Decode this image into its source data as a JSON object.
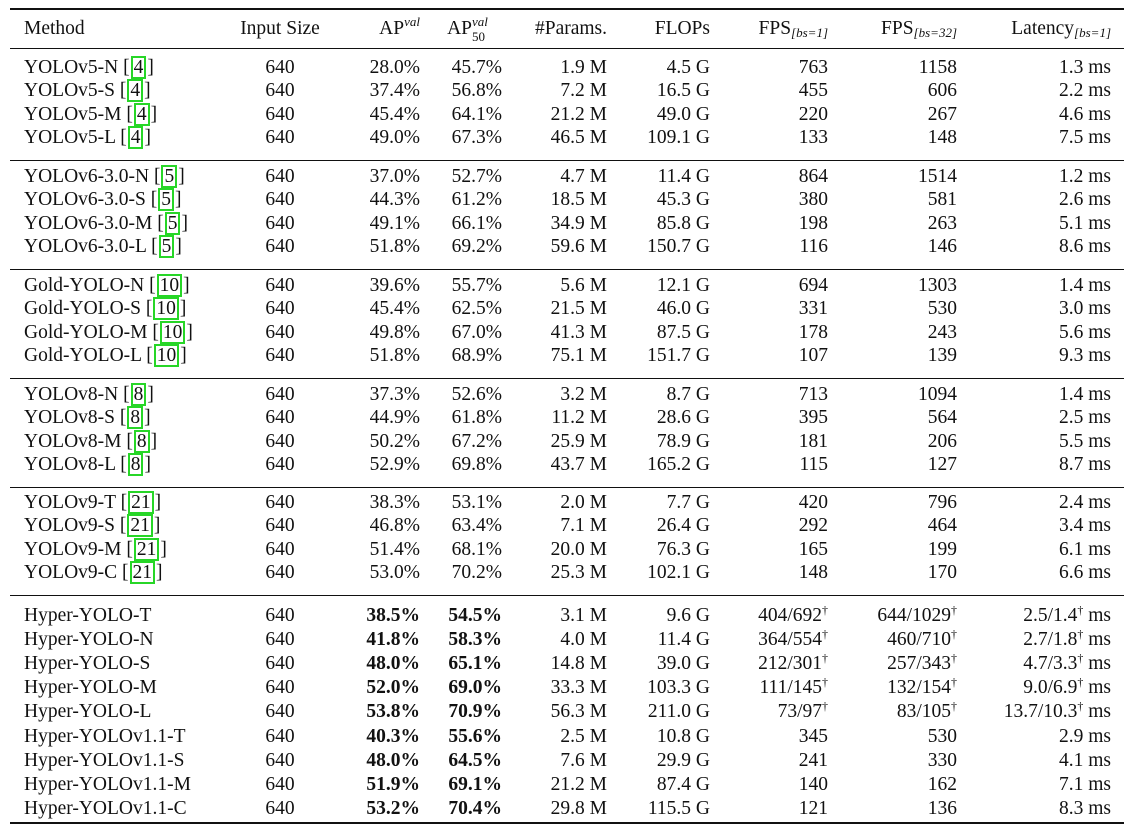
{
  "header": {
    "method": "Method",
    "input_size": "Input Size",
    "ap_val": {
      "base": "AP",
      "sup": "val"
    },
    "ap50_val": {
      "base": "AP",
      "sup": "val",
      "sub": "50"
    },
    "params": "#Params.",
    "flops": "FLOPs",
    "fps1": {
      "base": "FPS",
      "sub": "[bs=1]"
    },
    "fps32": {
      "base": "FPS",
      "sub": "[bs=32]"
    },
    "latency": {
      "base": "Latency",
      "sub": "[bs=1]"
    }
  },
  "groups": [
    {
      "rows": [
        {
          "method": "YOLOv5-N",
          "ref": "4",
          "size": "640",
          "ap": "28.0%",
          "ap50": "45.7%",
          "params": "1.9 M",
          "flops": "4.5 G",
          "fps1": "763",
          "fps32": "1158",
          "latency": "1.3 ms"
        },
        {
          "method": "YOLOv5-S",
          "ref": "4",
          "size": "640",
          "ap": "37.4%",
          "ap50": "56.8%",
          "params": "7.2 M",
          "flops": "16.5 G",
          "fps1": "455",
          "fps32": "606",
          "latency": "2.2 ms"
        },
        {
          "method": "YOLOv5-M",
          "ref": "4",
          "size": "640",
          "ap": "45.4%",
          "ap50": "64.1%",
          "params": "21.2 M",
          "flops": "49.0 G",
          "fps1": "220",
          "fps32": "267",
          "latency": "4.6 ms"
        },
        {
          "method": "YOLOv5-L",
          "ref": "4",
          "size": "640",
          "ap": "49.0%",
          "ap50": "67.3%",
          "params": "46.5 M",
          "flops": "109.1 G",
          "fps1": "133",
          "fps32": "148",
          "latency": "7.5 ms"
        }
      ]
    },
    {
      "rows": [
        {
          "method": "YOLOv6-3.0-N",
          "ref": "5",
          "size": "640",
          "ap": "37.0%",
          "ap50": "52.7%",
          "params": "4.7 M",
          "flops": "11.4 G",
          "fps1": "864",
          "fps32": "1514",
          "latency": "1.2 ms"
        },
        {
          "method": "YOLOv6-3.0-S",
          "ref": "5",
          "size": "640",
          "ap": "44.3%",
          "ap50": "61.2%",
          "params": "18.5 M",
          "flops": "45.3 G",
          "fps1": "380",
          "fps32": "581",
          "latency": "2.6 ms"
        },
        {
          "method": "YOLOv6-3.0-M",
          "ref": "5",
          "size": "640",
          "ap": "49.1%",
          "ap50": "66.1%",
          "params": "34.9 M",
          "flops": "85.8 G",
          "fps1": "198",
          "fps32": "263",
          "latency": "5.1 ms"
        },
        {
          "method": "YOLOv6-3.0-L",
          "ref": "5",
          "size": "640",
          "ap": "51.8%",
          "ap50": "69.2%",
          "params": "59.6 M",
          "flops": "150.7 G",
          "fps1": "116",
          "fps32": "146",
          "latency": "8.6 ms"
        }
      ]
    },
    {
      "rows": [
        {
          "method": "Gold-YOLO-N",
          "ref": "10",
          "size": "640",
          "ap": "39.6%",
          "ap50": "55.7%",
          "params": "5.6 M",
          "flops": "12.1 G",
          "fps1": "694",
          "fps32": "1303",
          "latency": "1.4 ms"
        },
        {
          "method": "Gold-YOLO-S",
          "ref": "10",
          "size": "640",
          "ap": "45.4%",
          "ap50": "62.5%",
          "params": "21.5 M",
          "flops": "46.0 G",
          "fps1": "331",
          "fps32": "530",
          "latency": "3.0 ms"
        },
        {
          "method": "Gold-YOLO-M",
          "ref": "10",
          "size": "640",
          "ap": "49.8%",
          "ap50": "67.0%",
          "params": "41.3 M",
          "flops": "87.5 G",
          "fps1": "178",
          "fps32": "243",
          "latency": "5.6 ms"
        },
        {
          "method": "Gold-YOLO-L",
          "ref": "10",
          "size": "640",
          "ap": "51.8%",
          "ap50": "68.9%",
          "params": "75.1 M",
          "flops": "151.7 G",
          "fps1": "107",
          "fps32": "139",
          "latency": "9.3 ms"
        }
      ]
    },
    {
      "rows": [
        {
          "method": "YOLOv8-N",
          "ref": "8",
          "size": "640",
          "ap": "37.3%",
          "ap50": "52.6%",
          "params": "3.2 M",
          "flops": "8.7 G",
          "fps1": "713",
          "fps32": "1094",
          "latency": "1.4 ms"
        },
        {
          "method": "YOLOv8-S",
          "ref": "8",
          "size": "640",
          "ap": "44.9%",
          "ap50": "61.8%",
          "params": "11.2 M",
          "flops": "28.6 G",
          "fps1": "395",
          "fps32": "564",
          "latency": "2.5 ms"
        },
        {
          "method": "YOLOv8-M",
          "ref": "8",
          "size": "640",
          "ap": "50.2%",
          "ap50": "67.2%",
          "params": "25.9 M",
          "flops": "78.9 G",
          "fps1": "181",
          "fps32": "206",
          "latency": "5.5 ms"
        },
        {
          "method": "YOLOv8-L",
          "ref": "8",
          "size": "640",
          "ap": "52.9%",
          "ap50": "69.8%",
          "params": "43.7 M",
          "flops": "165.2 G",
          "fps1": "115",
          "fps32": "127",
          "latency": "8.7 ms"
        }
      ]
    },
    {
      "rows": [
        {
          "method": "YOLOv9-T",
          "ref": "21",
          "size": "640",
          "ap": "38.3%",
          "ap50": "53.1%",
          "params": "2.0 M",
          "flops": "7.7 G",
          "fps1": "420",
          "fps32": "796",
          "latency": "2.4 ms"
        },
        {
          "method": "YOLOv9-S",
          "ref": "21",
          "size": "640",
          "ap": "46.8%",
          "ap50": "63.4%",
          "params": "7.1 M",
          "flops": "26.4 G",
          "fps1": "292",
          "fps32": "464",
          "latency": "3.4 ms"
        },
        {
          "method": "YOLOv9-M",
          "ref": "21",
          "size": "640",
          "ap": "51.4%",
          "ap50": "68.1%",
          "params": "20.0 M",
          "flops": "76.3 G",
          "fps1": "165",
          "fps32": "199",
          "latency": "6.1 ms"
        },
        {
          "method": "YOLOv9-C",
          "ref": "21",
          "size": "640",
          "ap": "53.0%",
          "ap50": "70.2%",
          "params": "25.3 M",
          "flops": "102.1 G",
          "fps1": "148",
          "fps32": "170",
          "latency": "6.6 ms"
        }
      ]
    },
    {
      "rows": [
        {
          "method": "Hyper-YOLO-T",
          "ref": "",
          "size": "640",
          "ap": "38.5%",
          "ap50": "54.5%",
          "params": "3.1 M",
          "flops": "9.6 G",
          "fps1": "404/692",
          "fps1_dagger": "†",
          "fps32": "644/1029",
          "fps32_dagger": "†",
          "latency": "2.5/1.4",
          "latency_dagger": "†",
          "latency_unit": " ms",
          "bold": true
        },
        {
          "method": "Hyper-YOLO-N",
          "ref": "",
          "size": "640",
          "ap": "41.8%",
          "ap50": "58.3%",
          "params": "4.0 M",
          "flops": "11.4 G",
          "fps1": "364/554",
          "fps1_dagger": "†",
          "fps32": "460/710",
          "fps32_dagger": "†",
          "latency": "2.7/1.8",
          "latency_dagger": "†",
          "latency_unit": " ms",
          "bold": true
        },
        {
          "method": "Hyper-YOLO-S",
          "ref": "",
          "size": "640",
          "ap": "48.0%",
          "ap50": "65.1%",
          "params": "14.8 M",
          "flops": "39.0 G",
          "fps1": "212/301",
          "fps1_dagger": "†",
          "fps32": "257/343",
          "fps32_dagger": "†",
          "latency": "4.7/3.3",
          "latency_dagger": "†",
          "latency_unit": " ms",
          "bold": true
        },
        {
          "method": "Hyper-YOLO-M",
          "ref": "",
          "size": "640",
          "ap": "52.0%",
          "ap50": "69.0%",
          "params": "33.3 M",
          "flops": "103.3 G",
          "fps1": "111/145",
          "fps1_dagger": "†",
          "fps32": "132/154",
          "fps32_dagger": "†",
          "latency": "9.0/6.9",
          "latency_dagger": "†",
          "latency_unit": " ms",
          "bold": true
        },
        {
          "method": "Hyper-YOLO-L",
          "ref": "",
          "size": "640",
          "ap": "53.8%",
          "ap50": "70.9%",
          "params": "56.3 M",
          "flops": "211.0 G",
          "fps1": "73/97",
          "fps1_dagger": "†",
          "fps32": "83/105",
          "fps32_dagger": "†",
          "latency": "13.7/10.3",
          "latency_dagger": "†",
          "latency_unit": " ms",
          "bold": true
        },
        {
          "method": "Hyper-YOLOv1.1-T",
          "ref": "",
          "size": "640",
          "ap": "40.3%",
          "ap50": "55.6%",
          "params": "2.5 M",
          "flops": "10.8 G",
          "fps1": "345",
          "fps32": "530",
          "latency": "2.9 ms",
          "bold": true
        },
        {
          "method": "Hyper-YOLOv1.1-S",
          "ref": "",
          "size": "640",
          "ap": "48.0%",
          "ap50": "64.5%",
          "params": "7.6 M",
          "flops": "29.9 G",
          "fps1": "241",
          "fps32": "330",
          "latency": "4.1 ms",
          "bold": true
        },
        {
          "method": "Hyper-YOLOv1.1-M",
          "ref": "",
          "size": "640",
          "ap": "51.9%",
          "ap50": "69.1%",
          "params": "21.2 M",
          "flops": "87.4 G",
          "fps1": "140",
          "fps32": "162",
          "latency": "7.1 ms",
          "bold": true
        },
        {
          "method": "Hyper-YOLOv1.1-C",
          "ref": "",
          "size": "640",
          "ap": "53.2%",
          "ap50": "70.4%",
          "params": "29.8 M",
          "flops": "115.5 G",
          "fps1": "121",
          "fps32": "136",
          "latency": "8.3 ms",
          "bold": true
        }
      ]
    }
  ]
}
